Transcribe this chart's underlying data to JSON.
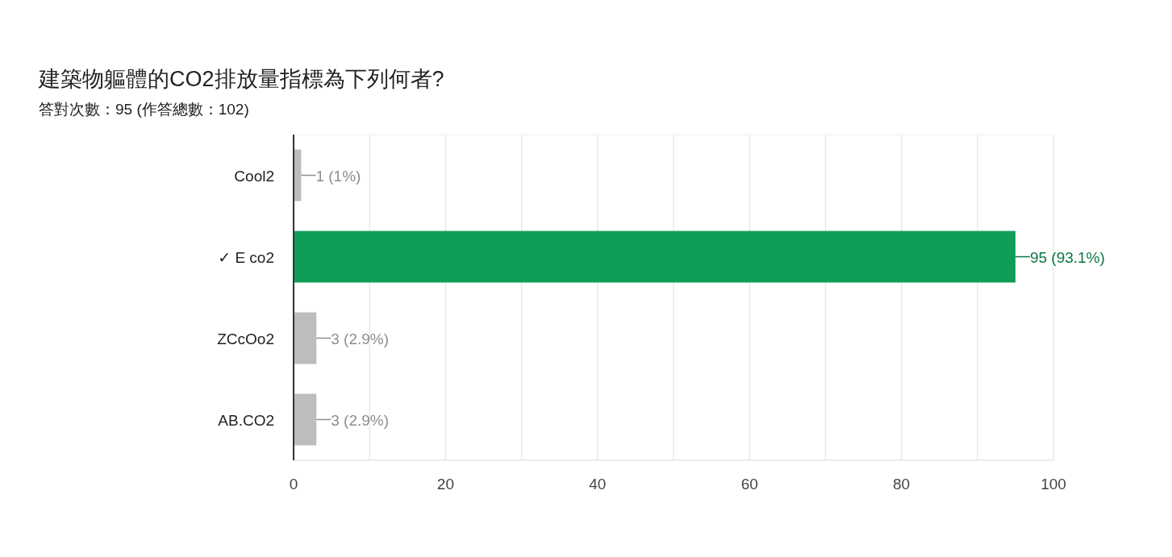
{
  "chart_data": {
    "type": "bar",
    "orientation": "horizontal",
    "title": "建築物軀體的CO2排放量指標為下列何者?",
    "subtitle": "答對次數：95 (作答總數：102)",
    "categories": [
      "Cool2",
      "✓ E co2",
      "ZCcOo2",
      "AB.CO2"
    ],
    "values": [
      1,
      95,
      3,
      3
    ],
    "colors": [
      "#bdbdbd",
      "#0f9d58",
      "#bdbdbd",
      "#bdbdbd"
    ],
    "value_labels": [
      "1 (1%)",
      "95 (93.1%)",
      "3 (2.9%)",
      "3 (2.9%)"
    ],
    "xlim": [
      0,
      100
    ],
    "xticks": [
      0,
      {
        "value": 10,
        "label": null
      },
      20,
      {
        "value": 30,
        "label": null
      },
      40,
      {
        "value": 50,
        "label": null
      },
      60,
      {
        "value": 70,
        "label": null
      },
      80,
      {
        "value": 90,
        "label": null
      },
      100
    ],
    "grid": "x"
  }
}
